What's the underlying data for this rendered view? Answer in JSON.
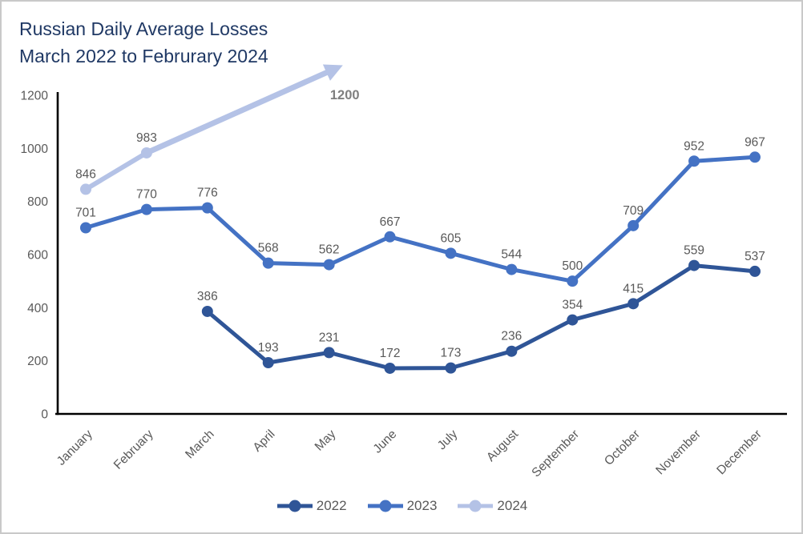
{
  "title": {
    "line1": "Russian Daily Average Losses",
    "line2": "March 2022 to Februrary 2024",
    "color": "#1f3864"
  },
  "chart_data": {
    "type": "line",
    "categories": [
      "January",
      "February",
      "March",
      "April",
      "May",
      "June",
      "July",
      "August",
      "September",
      "October",
      "November",
      "December"
    ],
    "series": [
      {
        "name": "2022",
        "color": "#2f5597",
        "values": [
          null,
          null,
          386,
          193,
          231,
          172,
          173,
          236,
          354,
          415,
          559,
          537
        ]
      },
      {
        "name": "2023",
        "color": "#4472c4",
        "values": [
          701,
          770,
          776,
          568,
          562,
          667,
          605,
          544,
          500,
          709,
          952,
          967
        ]
      },
      {
        "name": "2024",
        "color": "#b4c2e6",
        "values": [
          846,
          983,
          null,
          null,
          null,
          null,
          null,
          null,
          null,
          null,
          null,
          null
        ]
      }
    ],
    "projection_arrow": {
      "series": "2024",
      "from_month_index": 1,
      "from_value": 983,
      "to_month_index": 4.1,
      "to_value": 1300,
      "label": "1200",
      "label_color": "#7f7f7f"
    },
    "ylim": [
      0,
      1200
    ],
    "yticks": [
      0,
      200,
      400,
      600,
      800,
      1000,
      1200
    ],
    "grid": false,
    "legend_position": "bottom",
    "axis_color": "#000000",
    "tick_label_color": "#595959",
    "data_label_color": "#595959"
  }
}
